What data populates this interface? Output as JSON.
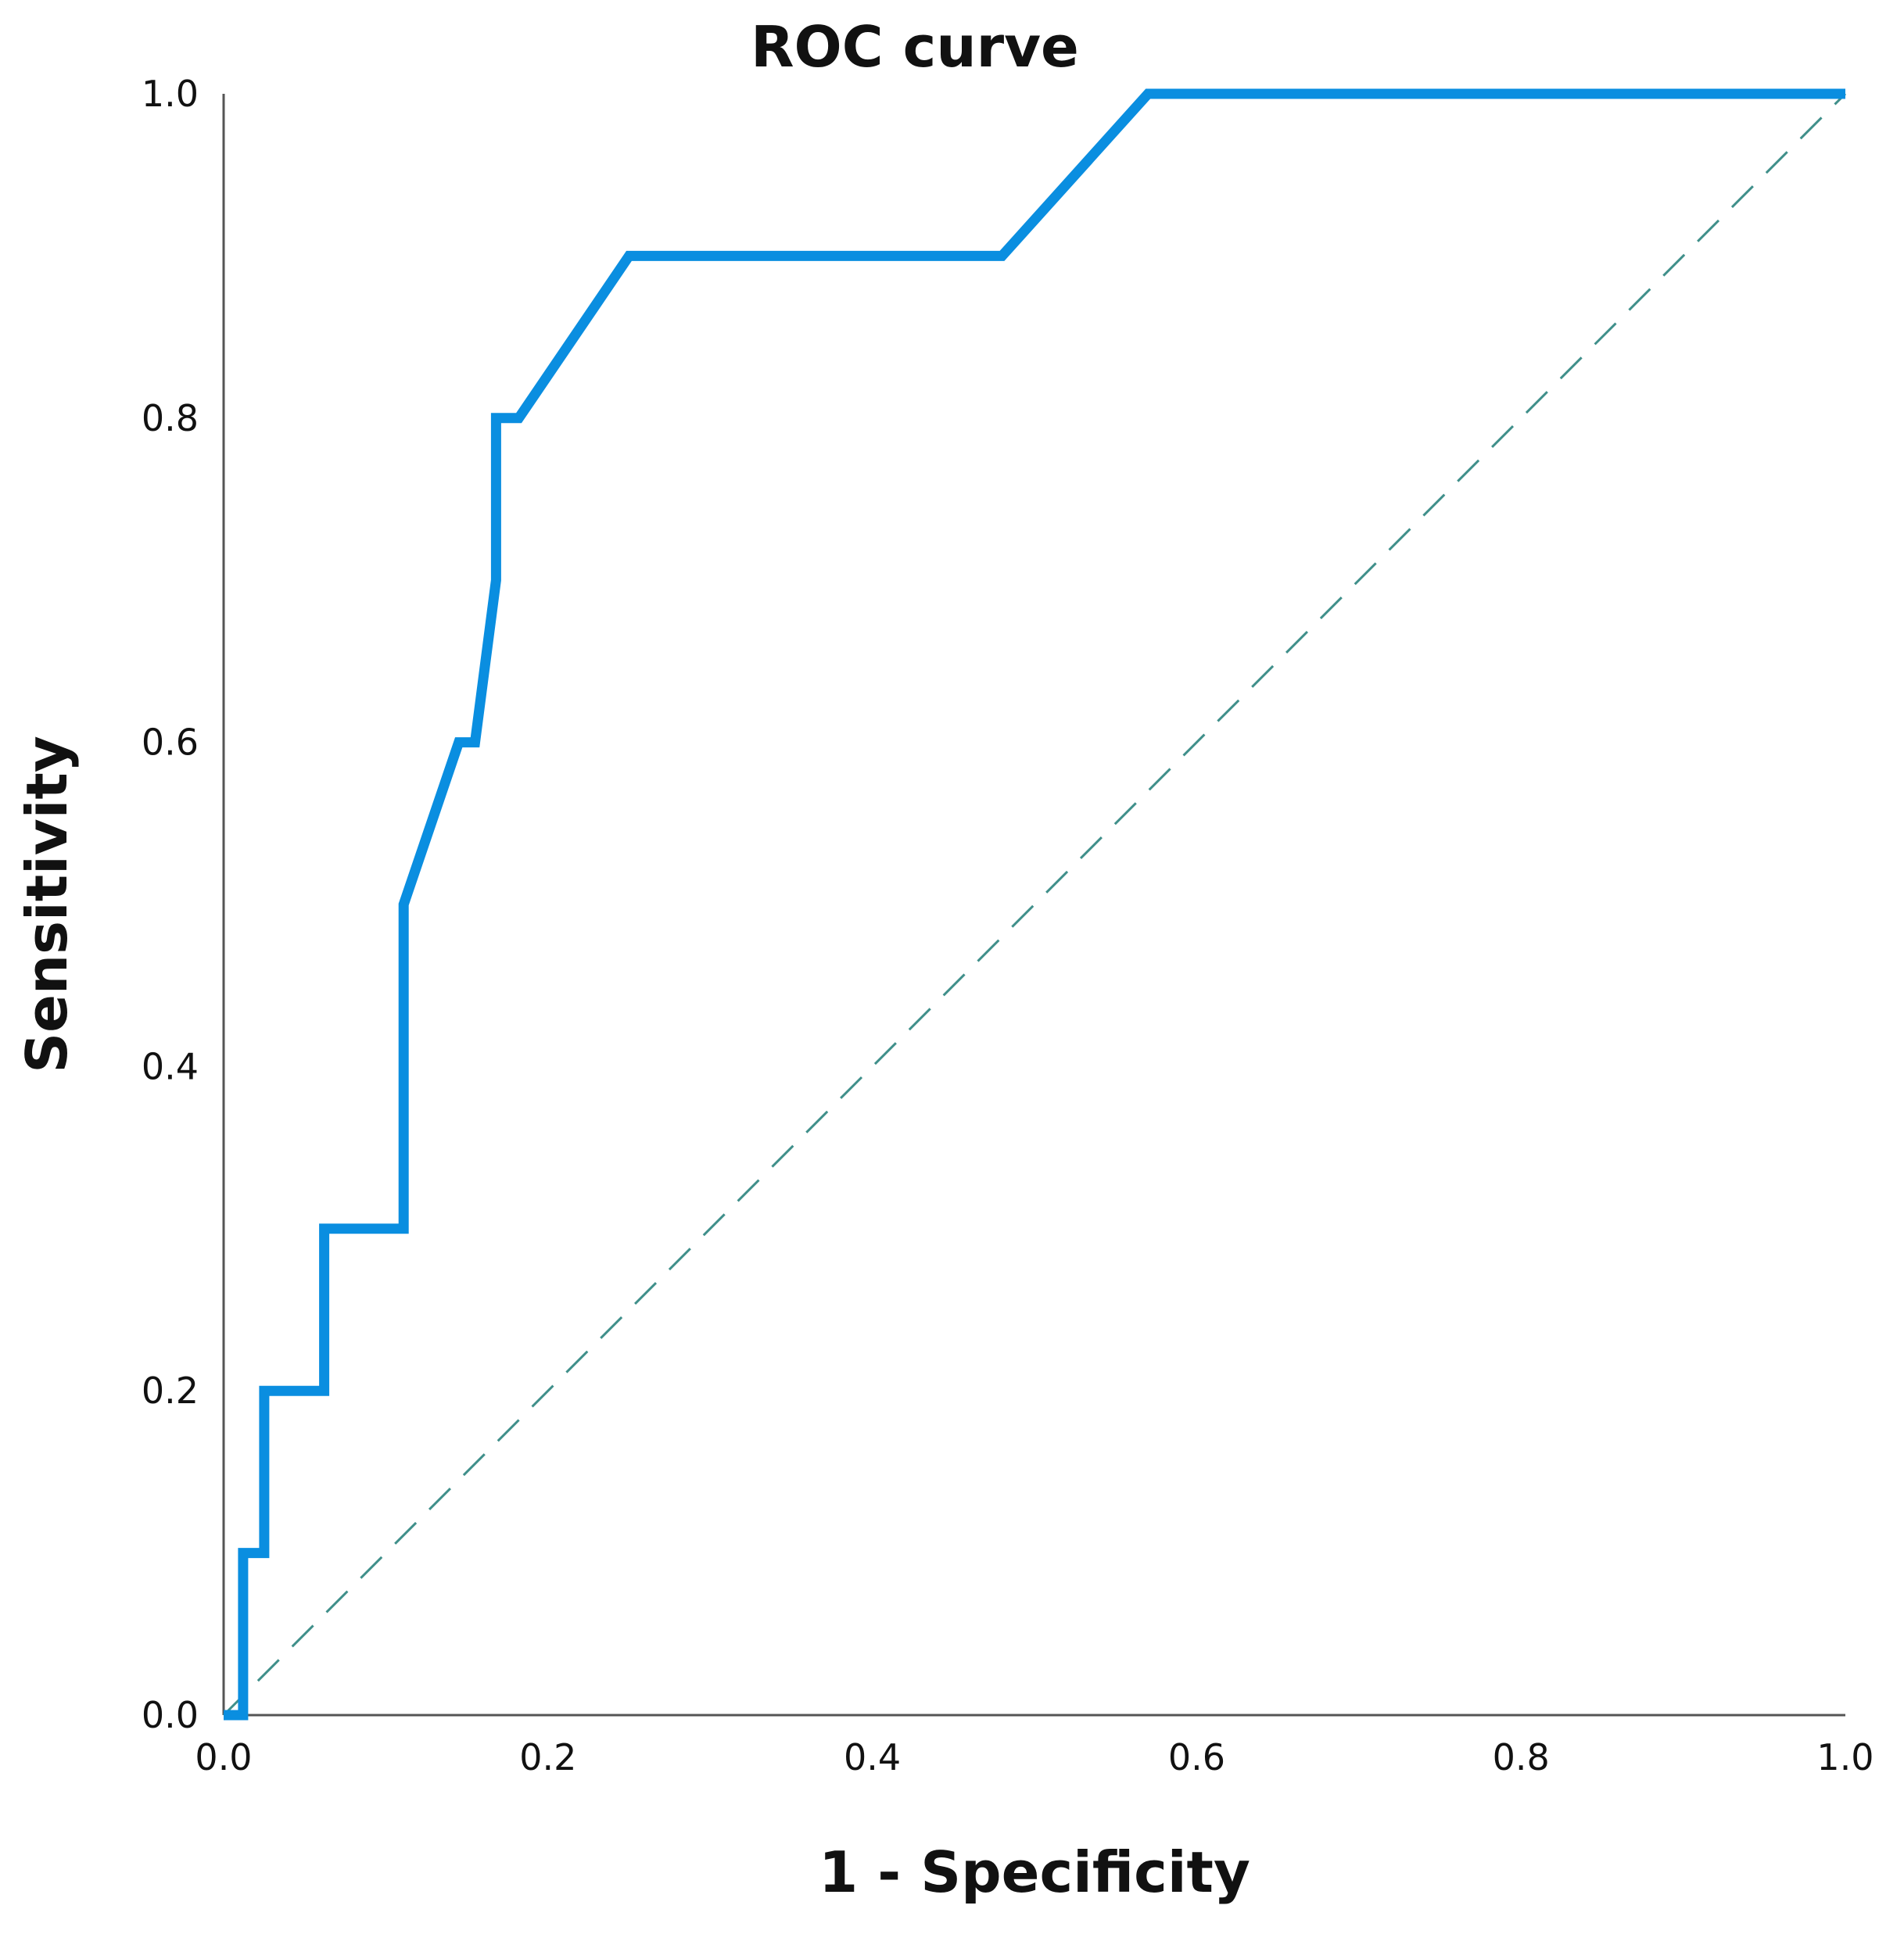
{
  "chart_data": {
    "type": "line",
    "title": "ROC curve",
    "xlabel": "1 - Specificity",
    "ylabel": "Sensitivity",
    "xlim": [
      0.0,
      1.0
    ],
    "ylim": [
      0.0,
      1.0
    ],
    "grid": false,
    "x_ticks": [
      "0.0",
      "0.2",
      "0.4",
      "0.6",
      "0.8",
      "1.0"
    ],
    "y_ticks": [
      "0.0",
      "0.2",
      "0.4",
      "0.6",
      "0.8",
      "1.0"
    ],
    "series": [
      {
        "name": "ROC",
        "color": "#0a8ee0",
        "x": [
          0.0,
          0.012,
          0.012,
          0.025,
          0.025,
          0.062,
          0.062,
          0.111,
          0.111,
          0.145,
          0.155,
          0.168,
          0.168,
          0.182,
          0.25,
          0.48,
          0.57,
          1.0
        ],
        "y": [
          0.0,
          0.0,
          0.1,
          0.1,
          0.2,
          0.2,
          0.3,
          0.3,
          0.5,
          0.6,
          0.6,
          0.7,
          0.8,
          0.8,
          0.9,
          0.9,
          1.0,
          1.0
        ]
      },
      {
        "name": "Reference line",
        "color": "#3f8f8a",
        "style": "dashed",
        "x": [
          0.0,
          1.0
        ],
        "y": [
          0.0,
          1.0
        ]
      }
    ]
  }
}
